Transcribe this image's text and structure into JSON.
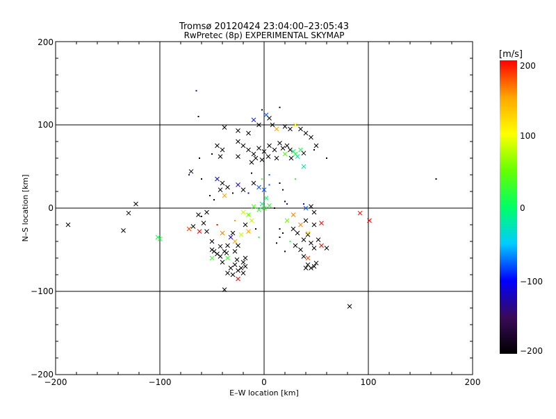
{
  "chart_data": {
    "type": "scatter",
    "title": "Tromsø 20120424 23:04:00–23:05:43",
    "subtitle": "RwPretec (8p) EXPERIMENTAL SKYMAP",
    "xlabel": "E–W location [km]",
    "ylabel": "N–S location [km]",
    "xlim": [
      -200,
      200
    ],
    "ylim": [
      -200,
      200
    ],
    "xticks": [
      "−200",
      "−100",
      "0",
      "100",
      "200"
    ],
    "yticks": [
      "−200",
      "−100",
      "0",
      "100",
      "200"
    ],
    "grid": true,
    "colorbar": {
      "label": "[m/s]",
      "range": [
        -200,
        200
      ],
      "ticks": [
        "200",
        "100",
        "0",
        "−100",
        "−200"
      ],
      "colors": [
        "#000000",
        "#3a0a5a",
        "#0000ff",
        "#00ccff",
        "#00ff66",
        "#66ff00",
        "#ffff00",
        "#ffa500",
        "#ff0000"
      ]
    },
    "points": [
      [
        -65,
        141,
        -120,
        "d"
      ],
      [
        -63,
        110,
        -200,
        "d"
      ],
      [
        -38,
        97,
        -200,
        "x"
      ],
      [
        -25,
        93,
        -200,
        "x"
      ],
      [
        -15,
        90,
        -200,
        "x"
      ],
      [
        -10,
        106,
        -100,
        "x"
      ],
      [
        -5,
        100,
        -200,
        "x"
      ],
      [
        2,
        112,
        -80,
        "x"
      ],
      [
        5,
        108,
        -200,
        "x"
      ],
      [
        15,
        121,
        -200,
        "d"
      ],
      [
        8,
        100,
        -200,
        "x"
      ],
      [
        12,
        95,
        150,
        "x"
      ],
      [
        20,
        98,
        -200,
        "x"
      ],
      [
        25,
        95,
        -200,
        "x"
      ],
      [
        30,
        100,
        100,
        "x"
      ],
      [
        35,
        95,
        -200,
        "x"
      ],
      [
        40,
        90,
        -200,
        "x"
      ],
      [
        45,
        85,
        -200,
        "x"
      ],
      [
        50,
        75,
        -200,
        "x"
      ],
      [
        48,
        70,
        -200,
        "d"
      ],
      [
        -45,
        75,
        -200,
        "x"
      ],
      [
        -40,
        70,
        -200,
        "x"
      ],
      [
        -50,
        65,
        -200,
        "d"
      ],
      [
        -42,
        62,
        -200,
        "x"
      ],
      [
        -25,
        80,
        -200,
        "x"
      ],
      [
        -20,
        75,
        -200,
        "x"
      ],
      [
        -15,
        70,
        -200,
        "x"
      ],
      [
        -10,
        65,
        -200,
        "x"
      ],
      [
        -5,
        72,
        -200,
        "x"
      ],
      [
        0,
        68,
        -200,
        "x"
      ],
      [
        5,
        75,
        -200,
        "x"
      ],
      [
        10,
        70,
        -200,
        "x"
      ],
      [
        15,
        78,
        -200,
        "x"
      ],
      [
        18,
        72,
        -200,
        "x"
      ],
      [
        22,
        75,
        -200,
        "x"
      ],
      [
        25,
        70,
        -200,
        "x"
      ],
      [
        28,
        68,
        0,
        "x"
      ],
      [
        30,
        65,
        20,
        "x"
      ],
      [
        32,
        62,
        -20,
        "x"
      ],
      [
        35,
        70,
        10,
        "x"
      ],
      [
        38,
        66,
        -200,
        "x"
      ],
      [
        -8,
        60,
        -200,
        "x"
      ],
      [
        -2,
        58,
        -200,
        "x"
      ],
      [
        4,
        62,
        -200,
        "x"
      ],
      [
        12,
        60,
        -200,
        "x"
      ],
      [
        20,
        65,
        40,
        "x"
      ],
      [
        26,
        60,
        -200,
        "x"
      ],
      [
        38,
        50,
        -20,
        "x"
      ],
      [
        -25,
        62,
        -200,
        "x"
      ],
      [
        -12,
        55,
        -200,
        "x"
      ],
      [
        -70,
        44,
        -200,
        "x"
      ],
      [
        -72,
        40,
        -150,
        "d"
      ],
      [
        -60,
        35,
        -200,
        "d"
      ],
      [
        -45,
        35,
        -100,
        "x"
      ],
      [
        -40,
        30,
        -200,
        "x"
      ],
      [
        -35,
        25,
        -200,
        "x"
      ],
      [
        -42,
        22,
        -200,
        "x"
      ],
      [
        -38,
        15,
        150,
        "x"
      ],
      [
        -30,
        18,
        -200,
        "d"
      ],
      [
        -25,
        28,
        -120,
        "x"
      ],
      [
        -20,
        22,
        -200,
        "x"
      ],
      [
        -15,
        18,
        -100,
        "d"
      ],
      [
        -10,
        30,
        -200,
        "x"
      ],
      [
        -5,
        25,
        -80,
        "x"
      ],
      [
        0,
        22,
        -80,
        "x"
      ],
      [
        2,
        12,
        0,
        "x"
      ],
      [
        5,
        28,
        -80,
        "d"
      ],
      [
        -2,
        5,
        -10,
        "x"
      ],
      [
        0,
        0,
        30,
        "x"
      ],
      [
        -5,
        -2,
        20,
        "x"
      ],
      [
        -10,
        2,
        40,
        "x"
      ],
      [
        5,
        3,
        20,
        "x"
      ],
      [
        -20,
        -5,
        80,
        "x"
      ],
      [
        -15,
        -8,
        50,
        "x"
      ],
      [
        -28,
        -15,
        150,
        "d"
      ],
      [
        10,
        0,
        -200,
        "d"
      ],
      [
        15,
        30,
        -200,
        "d"
      ],
      [
        18,
        22,
        -200,
        "d"
      ],
      [
        30,
        35,
        30,
        "d"
      ],
      [
        38,
        5,
        -100,
        "d"
      ],
      [
        20,
        8,
        -200,
        "d"
      ],
      [
        22,
        5,
        -100,
        "d"
      ],
      [
        -2,
        35,
        50,
        "d"
      ],
      [
        -12,
        42,
        -200,
        "d"
      ],
      [
        5,
        40,
        -80,
        "d"
      ],
      [
        -52,
        15,
        -200,
        "d"
      ],
      [
        -48,
        10,
        -200,
        "d"
      ],
      [
        -60,
        -10,
        -200,
        "d"
      ],
      [
        -55,
        -5,
        -200,
        "x"
      ],
      [
        -63,
        -8,
        -200,
        "x"
      ],
      [
        -58,
        -18,
        -200,
        "x"
      ],
      [
        -68,
        -22,
        -200,
        "x"
      ],
      [
        -62,
        -28,
        200,
        "x"
      ],
      [
        -72,
        -25,
        180,
        "x"
      ],
      [
        -55,
        -28,
        -200,
        "x"
      ],
      [
        -45,
        -20,
        200,
        "d"
      ],
      [
        -50,
        -40,
        -200,
        "x"
      ],
      [
        -48,
        -52,
        -200,
        "x"
      ],
      [
        -42,
        -58,
        -200,
        "x"
      ],
      [
        -38,
        -52,
        -200,
        "x"
      ],
      [
        -35,
        -45,
        -200,
        "x"
      ],
      [
        -32,
        -35,
        -120,
        "x"
      ],
      [
        -40,
        -30,
        160,
        "x"
      ],
      [
        -30,
        -30,
        -200,
        "x"
      ],
      [
        -28,
        -40,
        150,
        "x"
      ],
      [
        -25,
        -45,
        -200,
        "x"
      ],
      [
        -35,
        -60,
        30,
        "x"
      ],
      [
        -40,
        -65,
        -200,
        "x"
      ],
      [
        -50,
        -60,
        30,
        "x"
      ],
      [
        -32,
        -72,
        -200,
        "x"
      ],
      [
        -28,
        -68,
        -200,
        "x"
      ],
      [
        -25,
        -75,
        -200,
        "x"
      ],
      [
        -22,
        -72,
        -200,
        "x"
      ],
      [
        -20,
        -65,
        -200,
        "x"
      ],
      [
        -18,
        -60,
        -200,
        "x"
      ],
      [
        -30,
        -80,
        -200,
        "x"
      ],
      [
        -25,
        -85,
        200,
        "x"
      ],
      [
        -20,
        -78,
        -200,
        "x"
      ],
      [
        -35,
        -78,
        -200,
        "x"
      ],
      [
        -18,
        -70,
        -200,
        "x"
      ],
      [
        -26,
        -62,
        -200,
        "x"
      ],
      [
        -36,
        -54,
        -200,
        "x"
      ],
      [
        -42,
        -46,
        -200,
        "x"
      ],
      [
        -28,
        -52,
        -200,
        "x"
      ],
      [
        -22,
        -32,
        80,
        "x"
      ],
      [
        -15,
        -28,
        150,
        "x"
      ],
      [
        -18,
        -20,
        -200,
        "x"
      ],
      [
        -12,
        -15,
        80,
        "x"
      ],
      [
        -8,
        -25,
        -200,
        "d"
      ],
      [
        -5,
        -35,
        20,
        "d"
      ],
      [
        -38,
        -98,
        -200,
        "x"
      ],
      [
        -100,
        -37,
        20,
        "x"
      ],
      [
        -102,
        -35,
        10,
        "x"
      ],
      [
        -135,
        -27,
        -200,
        "x"
      ],
      [
        -130,
        -6,
        -200,
        "x"
      ],
      [
        -123,
        5,
        -200,
        "x"
      ],
      [
        -188,
        -20,
        -200,
        "x"
      ],
      [
        165,
        35,
        -200,
        "d"
      ],
      [
        82,
        -118,
        -200,
        "x"
      ],
      [
        92,
        -6,
        200,
        "x"
      ],
      [
        101,
        -15,
        200,
        "x"
      ],
      [
        40,
        0,
        -80,
        "x"
      ],
      [
        45,
        2,
        -200,
        "x"
      ],
      [
        48,
        -5,
        -200,
        "x"
      ],
      [
        55,
        -18,
        200,
        "x"
      ],
      [
        48,
        -20,
        -200,
        "x"
      ],
      [
        40,
        -15,
        -200,
        "x"
      ],
      [
        35,
        -20,
        160,
        "x"
      ],
      [
        28,
        -25,
        -200,
        "x"
      ],
      [
        32,
        -30,
        -200,
        "x"
      ],
      [
        42,
        -32,
        -200,
        "x"
      ],
      [
        38,
        -38,
        -200,
        "x"
      ],
      [
        45,
        -42,
        -200,
        "x"
      ],
      [
        52,
        -38,
        -200,
        "x"
      ],
      [
        55,
        -45,
        200,
        "x"
      ],
      [
        60,
        -48,
        -200,
        "x"
      ],
      [
        48,
        -48,
        -200,
        "x"
      ],
      [
        42,
        -60,
        180,
        "x"
      ],
      [
        38,
        -58,
        -200,
        "x"
      ],
      [
        42,
        -68,
        -200,
        "x"
      ],
      [
        40,
        -72,
        -200,
        "x"
      ],
      [
        45,
        -72,
        -200,
        "x"
      ],
      [
        48,
        -70,
        -200,
        "x"
      ],
      [
        50,
        -66,
        -200,
        "x"
      ],
      [
        30,
        -45,
        -200,
        "x"
      ],
      [
        35,
        -50,
        -200,
        "x"
      ],
      [
        25,
        -40,
        20,
        "d"
      ],
      [
        15,
        -35,
        -200,
        "d"
      ],
      [
        22,
        -15,
        50,
        "x"
      ],
      [
        18,
        -30,
        -200,
        "d"
      ],
      [
        42,
        -30,
        120,
        "x"
      ],
      [
        15,
        -25,
        -200,
        "d"
      ],
      [
        12,
        -42,
        -200,
        "d"
      ],
      [
        28,
        -8,
        160,
        "x"
      ],
      [
        20,
        -52,
        -200,
        "d"
      ],
      [
        -62,
        60,
        -200,
        "d"
      ],
      [
        -2,
        118,
        -200,
        "d"
      ],
      [
        60,
        60,
        -200,
        "d"
      ],
      [
        -50,
        -50,
        -200,
        "x"
      ],
      [
        -45,
        -55,
        -200,
        "x"
      ]
    ]
  }
}
